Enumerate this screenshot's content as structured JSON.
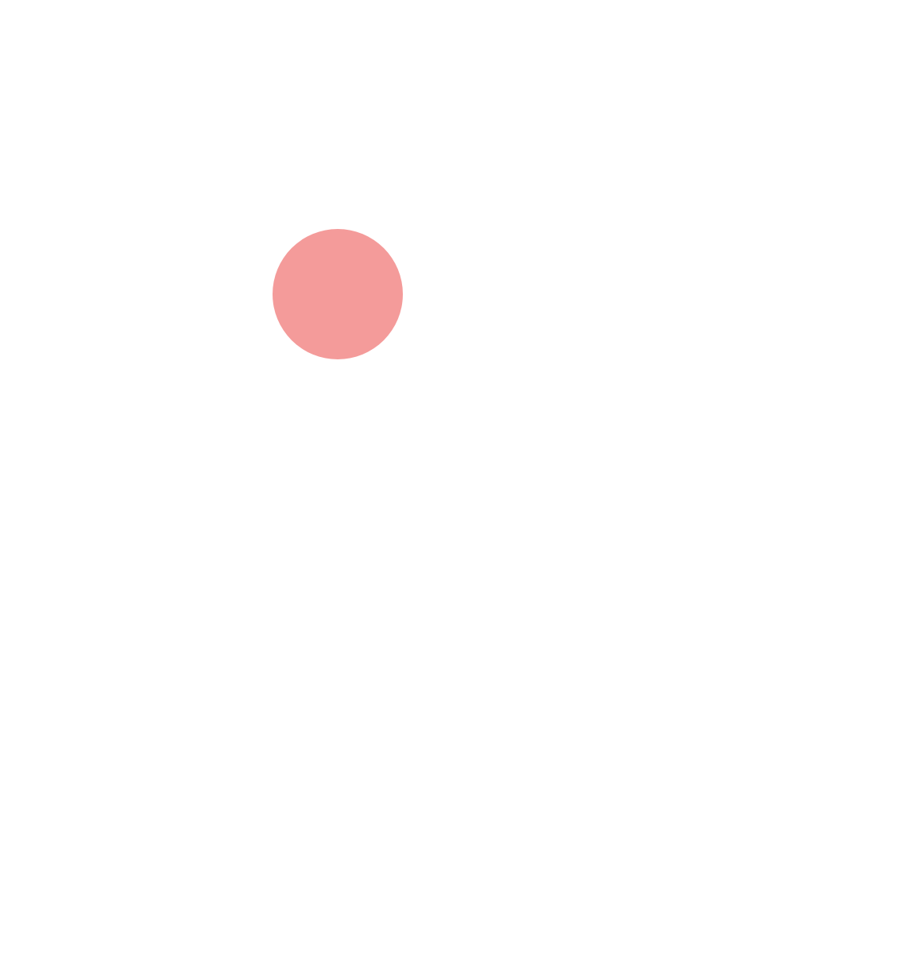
{
  "canvas": {
    "background_color": "#ffffff"
  },
  "shapes": [
    {
      "kind": "circle",
      "color": "#f49b9a"
    }
  ]
}
